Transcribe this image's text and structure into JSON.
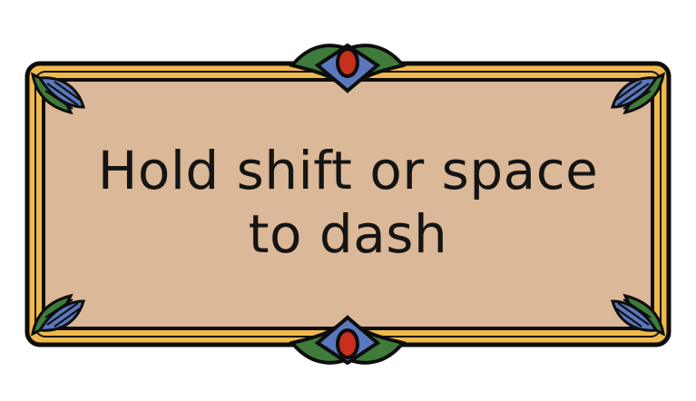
{
  "tooltip": {
    "line1": "Hold shift or space",
    "line2": "to dash"
  },
  "colors": {
    "panel": "#dbb897",
    "border": "#f0b94c",
    "outline": "#0d0d0d",
    "gem_blue": "#5a78bd",
    "gem_red": "#c8301c",
    "leaf_green": "#3f7b3a",
    "text": "#141414"
  },
  "icons": {
    "top_ornament": "gem-ornament-icon",
    "bottom_ornament": "gem-ornament-icon",
    "corner_ornament": "fan-leaf-icon"
  }
}
